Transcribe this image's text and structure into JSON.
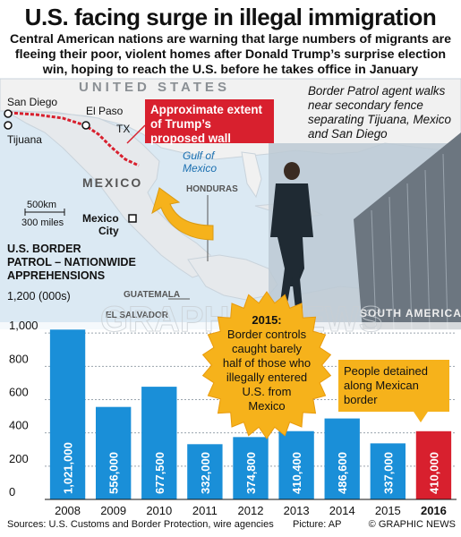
{
  "title": "U.S. facing surge in illegal immigration",
  "intro": "Central American nations are warning that large numbers of migrants are fleeing their poor, violent homes after Donald Trump’s surprise election win, hoping to reach the U.S. before he takes office in January",
  "caption": "Border Patrol agent walks near secondary fence separating Tijuana, Mexico and San Diego",
  "map": {
    "country_us": "UNITED STATES",
    "country_mexico": "MEXICO",
    "honduras": "HONDURAS",
    "guatemala": "GUATEMALA",
    "el_salvador": "EL SALVADOR",
    "south_america": "SOUTH AMERICA",
    "gulf": [
      "Gulf of",
      "Mexico"
    ],
    "cities": [
      "San Diego",
      "Tijuana",
      "El Paso",
      "TX",
      "Mexico",
      "City"
    ],
    "wall_label": "Approximate extent of Trump’s proposed wall",
    "scale": [
      "500km",
      "300 miles"
    ]
  },
  "callouts": {
    "b2015": "2015: Border controls caught barely half of those who illegally entered U.S. from Mexico",
    "b2015_head": "2015:",
    "b2015_body": [
      "Border controls",
      "caught barely",
      "half of those who",
      "illegally entered",
      "U.S. from",
      "Mexico"
    ],
    "b2016": [
      "People detained",
      "along Mexican",
      "border"
    ]
  },
  "watermark": "GRAPHIC NEWS",
  "colors": {
    "bar": "#1a8fd8",
    "highlight": "#d8202e",
    "starburst": "#f6b21b",
    "callout": "#f6b21b",
    "wall": "#d8202e"
  },
  "chart_data": {
    "type": "bar",
    "title": "U.S. Border Patrol – Nationwide Apprehensions",
    "title_lines": [
      "U.S. BORDER",
      "PATROL – NATIONWIDE",
      "APPREHENSIONS"
    ],
    "ylabel": "(000s)",
    "ylim": [
      0,
      1200
    ],
    "yticks": [
      0,
      200,
      400,
      600,
      800,
      1000,
      1200
    ],
    "ytick_labels": [
      "0",
      "200",
      "400",
      "600",
      "800",
      "1,000",
      "1,200"
    ],
    "categories": [
      "2008",
      "2009",
      "2010",
      "2011",
      "2012",
      "2013",
      "2014",
      "2015",
      "2016"
    ],
    "values": [
      1021,
      556,
      677.5,
      332,
      374.8,
      410.4,
      486.6,
      337,
      410
    ],
    "value_labels": [
      "1,021,000",
      "556,000",
      "677,500",
      "332,000",
      "374,800",
      "410,400",
      "486,600",
      "337,000",
      "410,000"
    ],
    "highlight_index": 8
  },
  "footer": {
    "sources": "Sources: U.S. Customs and Border Protection, wire agencies",
    "picture": "Picture: AP",
    "credit": "© GRAPHIC NEWS"
  }
}
